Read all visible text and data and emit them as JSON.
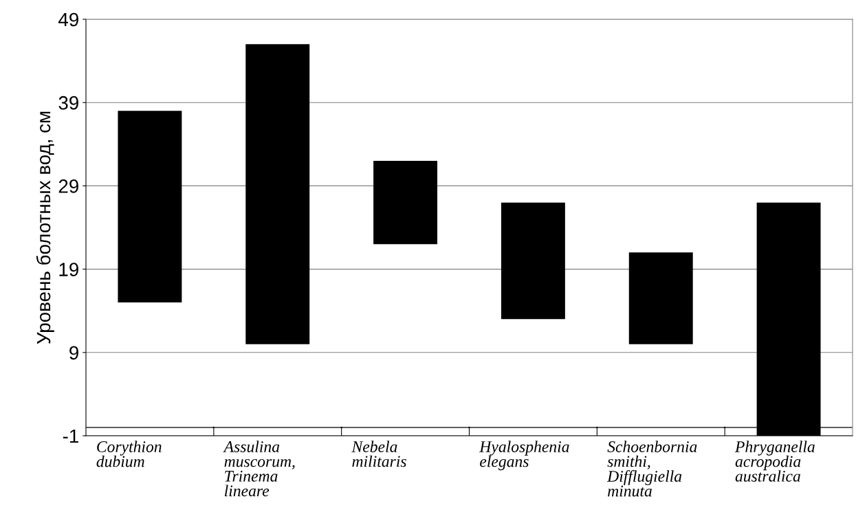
{
  "chart_data": {
    "type": "bar",
    "ylabel": "Уровень болотных вод, см",
    "categories": [
      "Corythion\ndubium",
      "Assulina\nmuscorum,\nTrinema\nlineare",
      "Nebela\nmilitaris",
      "Hyalosphenia\nelegans",
      "Schoenbornia\nsmithi,\nDifflugiella\nminuta",
      "Phryganella\nacropodia\naustralica"
    ],
    "base": [
      15,
      10,
      22,
      13,
      10,
      -1
    ],
    "values": [
      23,
      36,
      10,
      14,
      11,
      28
    ],
    "color": "#000000",
    "ylim": [
      -1,
      49
    ],
    "yticks": [
      -1,
      9,
      19,
      29,
      39,
      49
    ],
    "grid": "y",
    "ref_lines": [
      {
        "axis": "y",
        "value": 0,
        "label": null,
        "color": "#000000"
      }
    ]
  }
}
